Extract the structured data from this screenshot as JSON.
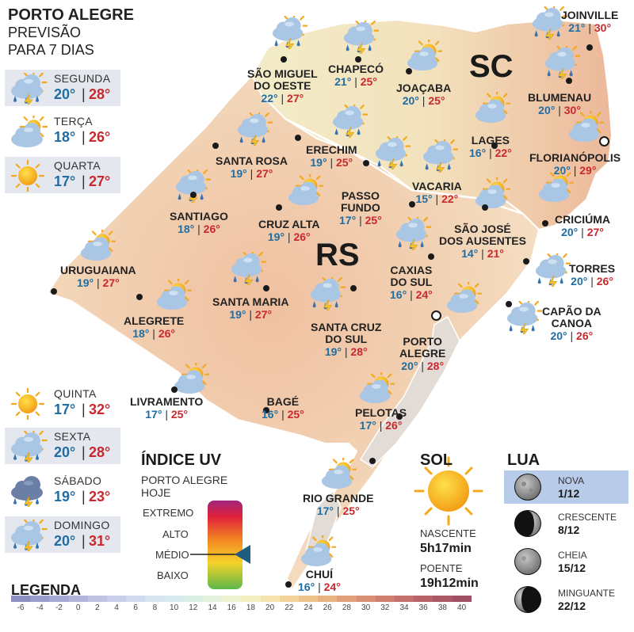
{
  "header": {
    "line1": "PORTO ALEGRE",
    "line2": "PREVISÃO",
    "line3": "PARA 7 DIAS"
  },
  "days": [
    {
      "name": "SEGUNDA",
      "min": "20°",
      "max": "28°",
      "icon": "sun-cloud-storm-icon"
    },
    {
      "name": "TERÇA",
      "min": "18°",
      "max": "26°",
      "icon": "sun-cloud-icon"
    },
    {
      "name": "QUARTA",
      "min": "17°",
      "max": "27°",
      "icon": "sun-icon"
    },
    {
      "name": "QUINTA",
      "min": "17°",
      "max": "32°",
      "icon": "sun-icon"
    },
    {
      "name": "SEXTA",
      "min": "20°",
      "max": "28°",
      "icon": "sun-cloud-storm-icon"
    },
    {
      "name": "SÁBADO",
      "min": "19°",
      "max": "23°",
      "icon": "cloud-storm-icon"
    },
    {
      "name": "DOMINGO",
      "min": "20°",
      "max": "31°",
      "icon": "sun-cloud-storm-icon"
    }
  ],
  "states": {
    "sc": "SC",
    "rs": "RS"
  },
  "cities": [
    {
      "name": "JOINVILLE",
      "min": "21°",
      "max": "30°"
    },
    {
      "name": "SÃO MIGUEL DO OESTE",
      "line1": "SÃO MIGUEL",
      "line2": "DO OESTE",
      "min": "22°",
      "max": "27°"
    },
    {
      "name": "CHAPECÓ",
      "min": "21°",
      "max": "25°"
    },
    {
      "name": "JOAÇABA",
      "min": "20°",
      "max": "25°"
    },
    {
      "name": "BLUMENAU",
      "min": "20°",
      "max": "30°"
    },
    {
      "name": "LAGES",
      "min": "16°",
      "max": "22°"
    },
    {
      "name": "FLORIANÓPOLIS",
      "min": "20°",
      "max": "29°"
    },
    {
      "name": "SANTA ROSA",
      "min": "19°",
      "max": "27°"
    },
    {
      "name": "ERECHIM",
      "min": "19°",
      "max": "25°"
    },
    {
      "name": "VACARIA",
      "min": "15°",
      "max": "22°"
    },
    {
      "name": "PASSO FUNDO",
      "line1": "PASSO",
      "line2": "FUNDO",
      "min": "17°",
      "max": "25°"
    },
    {
      "name": "SANTIAGO",
      "min": "18°",
      "max": "26°"
    },
    {
      "name": "CRUZ ALTA",
      "min": "19°",
      "max": "26°"
    },
    {
      "name": "CRICIÚMA",
      "min": "20°",
      "max": "27°"
    },
    {
      "name": "SÃO JOSÉ DOS AUSENTES",
      "line1": "SÃO JOSÉ",
      "line2": "DOS AUSENTES",
      "min": "14°",
      "max": "21°"
    },
    {
      "name": "URUGUAIANA",
      "min": "19°",
      "max": "27°"
    },
    {
      "name": "CAXIAS DO SUL",
      "line1": "CAXIAS",
      "line2": "DO SUL",
      "min": "16°",
      "max": "24°"
    },
    {
      "name": "TORRES",
      "min": "20°",
      "max": "26°"
    },
    {
      "name": "SANTA MARIA",
      "min": "19°",
      "max": "27°"
    },
    {
      "name": "ALEGRETE",
      "min": "18°",
      "max": "26°"
    },
    {
      "name": "CAPÃO DA CANOA",
      "line1": "CAPÃO DA",
      "line2": "CANOA",
      "min": "20°",
      "max": "26°"
    },
    {
      "name": "SANTA CRUZ DO SUL",
      "line1": "SANTA CRUZ",
      "line2": "DO SUL",
      "min": "19°",
      "max": "28°"
    },
    {
      "name": "PORTO ALEGRE",
      "line1": "PORTO",
      "line2": "ALEGRE",
      "min": "20°",
      "max": "28°"
    },
    {
      "name": "LIVRAMENTO",
      "min": "17°",
      "max": "25°"
    },
    {
      "name": "BAGÉ",
      "min": "16°",
      "max": "25°"
    },
    {
      "name": "PELOTAS",
      "min": "17°",
      "max": "26°"
    },
    {
      "name": "RIO GRANDE",
      "min": "17°",
      "max": "25°"
    },
    {
      "name": "CHUÍ",
      "min": "16°",
      "max": "24°"
    }
  ],
  "uv": {
    "title": "ÍNDICE UV",
    "sub1": "PORTO ALEGRE",
    "sub2": "HOJE",
    "levels": [
      "EXTREMO",
      "ALTO",
      "MÉDIO",
      "BAIXO"
    ],
    "current": "MÉDIO"
  },
  "sun": {
    "title": "SOL",
    "rise_label": "NASCENTE",
    "rise": "5h17min",
    "set_label": "POENTE",
    "set": "19h12min"
  },
  "moon": {
    "title": "LUA",
    "phases": [
      {
        "label": "NOVA",
        "date": "1/12",
        "selected": true
      },
      {
        "label": "CRESCENTE",
        "date": "8/12",
        "selected": false
      },
      {
        "label": "CHEIA",
        "date": "15/12",
        "selected": false
      },
      {
        "label": "MINGUANTE",
        "date": "22/12",
        "selected": false
      }
    ]
  },
  "legend": {
    "title": "LEGENDA",
    "values": [
      "-6",
      "-4",
      "-2",
      "0",
      "2",
      "4",
      "6",
      "8",
      "10",
      "12",
      "14",
      "16",
      "18",
      "20",
      "22",
      "24",
      "26",
      "28",
      "30",
      "32",
      "34",
      "36",
      "38",
      "40"
    ],
    "colors": [
      "#8d8fc0",
      "#9a9ccb",
      "#a6a9d3",
      "#b3b6da",
      "#c0c3e2",
      "#c9cfe8",
      "#d2dbee",
      "#d6e4f0",
      "#d9ebee",
      "#dcefe6",
      "#e3f1dc",
      "#ecf2cf",
      "#f3efc0",
      "#f5e4ae",
      "#f3d59c",
      "#efc48c",
      "#e8b282",
      "#e0a07a",
      "#d88f74",
      "#cf7f70",
      "#c4706c",
      "#b86369",
      "#ab5966",
      "#9d5063"
    ]
  },
  "colors": {
    "min_temp": "#1f6da3",
    "max_temp": "#c8282e",
    "panel_bg": "#e4e8ee",
    "moon_selected": "#b8cbe8"
  }
}
